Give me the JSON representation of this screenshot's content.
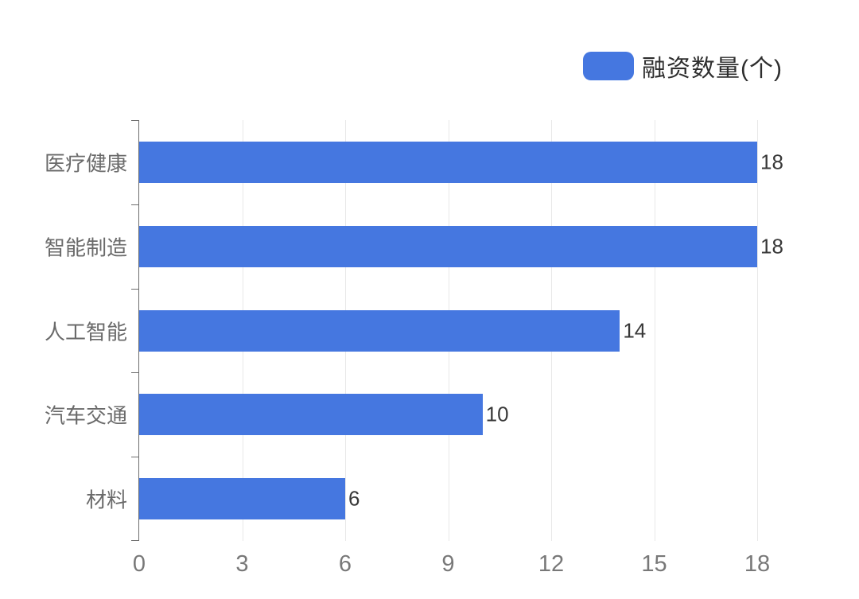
{
  "legend": {
    "label": "融资数量(个)",
    "swatch_color": "#4577E0"
  },
  "chart_data": {
    "type": "bar",
    "orientation": "horizontal",
    "title": "",
    "series_name": "融资数量(个)",
    "categories": [
      "医疗健康",
      "智能制造",
      "人工智能",
      "汽车交通",
      "材料"
    ],
    "values": [
      18,
      18,
      14,
      10,
      6
    ],
    "value_labels": [
      "18",
      "18",
      "14",
      "10",
      "6"
    ],
    "xlabel": "",
    "ylabel": "",
    "xlim": [
      0,
      18
    ],
    "x_ticks": [
      0,
      3,
      6,
      9,
      12,
      15,
      18
    ],
    "grid": "vertical-light",
    "legend_position": "top-right",
    "bar_color": "#4577E0",
    "axis_color": "#6d6d6d",
    "gridline_color": "#e9e9e9",
    "category_label_color": "#6a6a6a",
    "value_label_color": "#383838",
    "tick_label_color": "#787878"
  }
}
